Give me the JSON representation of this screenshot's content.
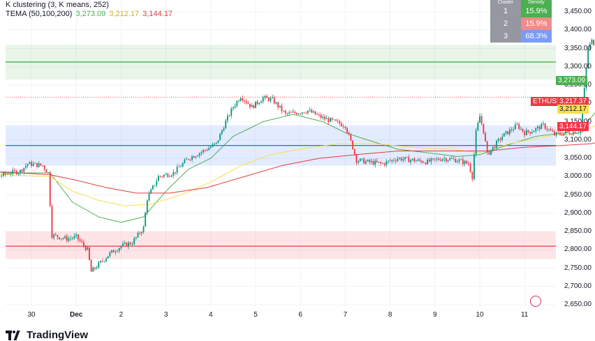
{
  "legend": {
    "title": "K clustering (3, K means, 252)",
    "tema_label": "TEMA (50,100,200)",
    "tema_values": [
      "3,273.09",
      "3,212.17",
      "3,144.17"
    ]
  },
  "cluster_table": {
    "header": [
      "Cluster",
      "Density"
    ],
    "rows": [
      {
        "id": "1",
        "value": "15.9%",
        "color": "#4caf50"
      },
      {
        "id": "2",
        "value": "15.9%",
        "color": "#f23645"
      },
      {
        "id": "3",
        "value": "68.3%",
        "color": "#2962ff"
      }
    ]
  },
  "price_tags": {
    "symbol": "ETHUSD",
    "last": "3,217.37",
    "tema_fast": "3,273.09",
    "tema_mid": "3,212.17",
    "tema_slow": "3,144.17"
  },
  "brand": "TradingView",
  "chart_data": {
    "type": "candlestick",
    "symbol": "ETHUSD",
    "y_ticks": [
      "3,450.00",
      "3,400.00",
      "3,350.00",
      "3,300.00",
      "3,250.00",
      "3,200.00",
      "3,150.00",
      "3,100.00",
      "3,050.00",
      "3,000.00",
      "2,950.00",
      "2,900.00",
      "2,850.00",
      "2,800.00",
      "2,750.00",
      "2,700.00",
      "2,650.00"
    ],
    "y_tick_values": [
      3450,
      3400,
      3350,
      3300,
      3250,
      3200,
      3150,
      3100,
      3050,
      3000,
      2950,
      2900,
      2850,
      2800,
      2750,
      2700,
      2650
    ],
    "ylim": [
      2645,
      3470
    ],
    "x_labels": [
      "30",
      "Dec",
      "2",
      "3",
      "4",
      "5",
      "6",
      "7",
      "8",
      "9",
      "10",
      "11"
    ],
    "bars_per_day": 24,
    "close_path": [
      [
        0,
        3030
      ],
      [
        6,
        3015
      ],
      [
        12,
        3005
      ],
      [
        18,
        3000
      ],
      [
        24,
        3010
      ],
      [
        30,
        3015
      ],
      [
        34,
        3035
      ],
      [
        42,
        3030
      ],
      [
        45,
        3010
      ],
      [
        47,
        2840
      ],
      [
        55,
        2830
      ],
      [
        60,
        2835
      ],
      [
        66,
        2800
      ],
      [
        68,
        2740
      ],
      [
        72,
        2760
      ],
      [
        78,
        2790
      ],
      [
        84,
        2810
      ],
      [
        90,
        2820
      ],
      [
        96,
        2860
      ],
      [
        98,
        2940
      ],
      [
        104,
        3000
      ],
      [
        112,
        3010
      ],
      [
        120,
        3050
      ],
      [
        128,
        3070
      ],
      [
        135,
        3090
      ],
      [
        140,
        3150
      ],
      [
        144,
        3190
      ],
      [
        148,
        3220
      ],
      [
        154,
        3190
      ],
      [
        160,
        3215
      ],
      [
        165,
        3210
      ],
      [
        172,
        3170
      ],
      [
        178,
        3175
      ],
      [
        184,
        3180
      ],
      [
        192,
        3160
      ],
      [
        198,
        3150
      ],
      [
        204,
        3140
      ],
      [
        206,
        3110
      ],
      [
        208,
        3080
      ],
      [
        210,
        3045
      ],
      [
        216,
        3040
      ],
      [
        224,
        3035
      ],
      [
        232,
        3050
      ],
      [
        240,
        3045
      ],
      [
        248,
        3040
      ],
      [
        256,
        3050
      ],
      [
        264,
        3045
      ],
      [
        270,
        3035
      ],
      [
        272,
        3000
      ],
      [
        274,
        3120
      ],
      [
        276,
        3165
      ],
      [
        278,
        3125
      ],
      [
        280,
        3060
      ],
      [
        288,
        3110
      ],
      [
        296,
        3140
      ],
      [
        300,
        3120
      ],
      [
        304,
        3125
      ],
      [
        310,
        3140
      ],
      [
        316,
        3115
      ],
      [
        324,
        3120
      ],
      [
        330,
        3125
      ],
      [
        334,
        3350
      ],
      [
        336,
        3370
      ],
      [
        340,
        3350
      ],
      [
        345,
        3310
      ],
      [
        350,
        3315
      ],
      [
        356,
        3330
      ],
      [
        360,
        3325
      ],
      [
        364,
        3330
      ],
      [
        366,
        3320
      ],
      [
        368,
        3360
      ],
      [
        370,
        3400
      ],
      [
        372,
        3395
      ],
      [
        374,
        3360
      ],
      [
        376,
        3345
      ],
      [
        378,
        3295
      ],
      [
        380,
        3240
      ],
      [
        381,
        3217
      ]
    ],
    "series": [
      {
        "name": "TEMA 50",
        "color": "#4caf50",
        "last": 3273.09,
        "path": [
          [
            0,
            3020
          ],
          [
            24,
            3010
          ],
          [
            46,
            3010
          ],
          [
            58,
            2930
          ],
          [
            72,
            2890
          ],
          [
            84,
            2875
          ],
          [
            96,
            2890
          ],
          [
            108,
            2960
          ],
          [
            120,
            3020
          ],
          [
            132,
            3050
          ],
          [
            144,
            3110
          ],
          [
            160,
            3150
          ],
          [
            176,
            3170
          ],
          [
            192,
            3150
          ],
          [
            204,
            3120
          ],
          [
            216,
            3100
          ],
          [
            232,
            3075
          ],
          [
            248,
            3065
          ],
          [
            264,
            3055
          ],
          [
            276,
            3060
          ],
          [
            290,
            3085
          ],
          [
            306,
            3110
          ],
          [
            322,
            3120
          ],
          [
            332,
            3140
          ],
          [
            342,
            3200
          ],
          [
            356,
            3240
          ],
          [
            370,
            3275
          ],
          [
            381,
            3273
          ]
        ]
      },
      {
        "name": "TEMA 100",
        "color": "#f5e04f",
        "last": 3212.17,
        "path": [
          [
            0,
            3010
          ],
          [
            24,
            3005
          ],
          [
            46,
            3000
          ],
          [
            58,
            2960
          ],
          [
            72,
            2935
          ],
          [
            86,
            2920
          ],
          [
            100,
            2925
          ],
          [
            116,
            2950
          ],
          [
            132,
            2985
          ],
          [
            148,
            3030
          ],
          [
            164,
            3060
          ],
          [
            180,
            3075
          ],
          [
            200,
            3090
          ],
          [
            220,
            3090
          ],
          [
            240,
            3080
          ],
          [
            260,
            3075
          ],
          [
            276,
            3065
          ],
          [
            292,
            3090
          ],
          [
            312,
            3110
          ],
          [
            330,
            3120
          ],
          [
            346,
            3160
          ],
          [
            362,
            3185
          ],
          [
            381,
            3212
          ]
        ]
      },
      {
        "name": "TEMA 200",
        "color": "#e03c3c",
        "last": 3144.17,
        "path": [
          [
            0,
            3015
          ],
          [
            24,
            3012
          ],
          [
            46,
            3005
          ],
          [
            60,
            2990
          ],
          [
            76,
            2970
          ],
          [
            92,
            2955
          ],
          [
            110,
            2955
          ],
          [
            130,
            2970
          ],
          [
            150,
            3000
          ],
          [
            170,
            3030
          ],
          [
            190,
            3050
          ],
          [
            210,
            3060
          ],
          [
            232,
            3070
          ],
          [
            256,
            3070
          ],
          [
            280,
            3070
          ],
          [
            300,
            3080
          ],
          [
            320,
            3085
          ],
          [
            336,
            3090
          ],
          [
            352,
            3110
          ],
          [
            368,
            3135
          ],
          [
            381,
            3144
          ]
        ]
      }
    ],
    "clusters": [
      {
        "id": 1,
        "color": "#4caf50",
        "low": 3265,
        "high": 3360,
        "level": 3313
      },
      {
        "id": 2,
        "color": "#2962ff",
        "low": 3030,
        "high": 3140,
        "level": 3085
      },
      {
        "id": 3,
        "color": "#f23645",
        "low": 2775,
        "high": 2850,
        "level": 2810
      }
    ]
  }
}
